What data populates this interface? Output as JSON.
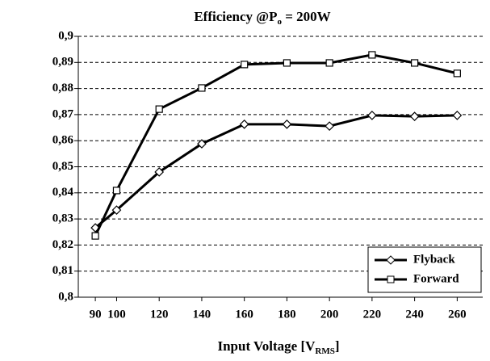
{
  "chart_data": {
    "type": "line",
    "title": "Efficiency @P",
    "title_subscript": "o",
    "title_end": " = 200W",
    "x_label": "Input Voltage [V",
    "x_label_subscript": "RMS",
    "x_label_end": "]",
    "x": [
      90,
      100,
      120,
      140,
      160,
      180,
      200,
      220,
      240,
      260
    ],
    "xlim": [
      82,
      272
    ],
    "xticks": [
      90,
      100,
      120,
      140,
      160,
      180,
      200,
      220,
      240,
      260
    ],
    "ylim": [
      0.8,
      0.9
    ],
    "yticks": [
      {
        "value": 0.8,
        "label": "0,8"
      },
      {
        "value": 0.81,
        "label": "0,81"
      },
      {
        "value": 0.82,
        "label": "0,82"
      },
      {
        "value": 0.83,
        "label": "0,83"
      },
      {
        "value": 0.84,
        "label": "0,84"
      },
      {
        "value": 0.85,
        "label": "0,85"
      },
      {
        "value": 0.86,
        "label": "0,86"
      },
      {
        "value": 0.87,
        "label": "0,87"
      },
      {
        "value": 0.88,
        "label": "0,88"
      },
      {
        "value": 0.89,
        "label": "0,89"
      },
      {
        "value": 0.9,
        "label": "0,9"
      }
    ],
    "grid": true,
    "legend": "lower right",
    "series": [
      {
        "name": "Flyback",
        "color": "#000000",
        "marker": "diamond",
        "values": [
          0.8266,
          0.8334,
          0.848,
          0.8588,
          0.8663,
          0.8663,
          0.8656,
          0.8697,
          0.8693,
          0.8697
        ]
      },
      {
        "name": "Forward",
        "color": "#000000",
        "marker": "square",
        "values": [
          0.8235,
          0.8409,
          0.8721,
          0.8802,
          0.8892,
          0.8898,
          0.8898,
          0.8929,
          0.8898,
          0.8858
        ]
      }
    ]
  }
}
